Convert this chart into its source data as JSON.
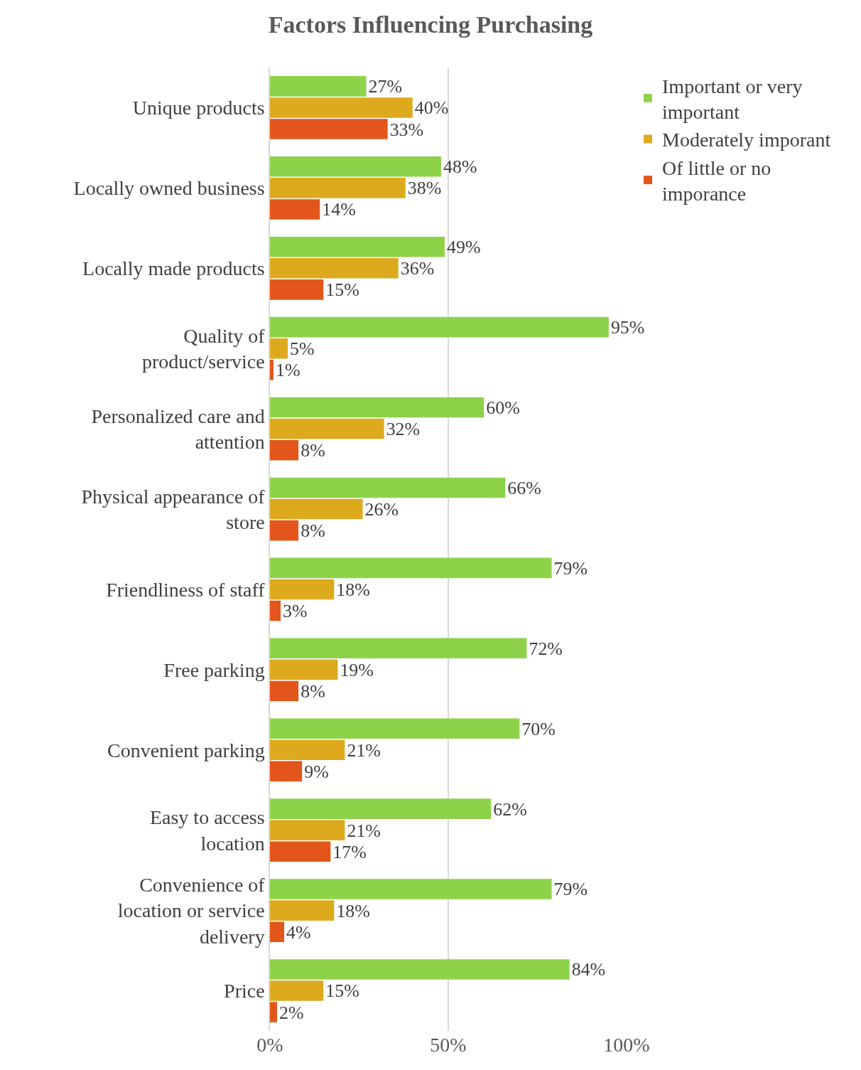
{
  "chart_data": {
    "type": "bar",
    "orientation": "horizontal",
    "title": "Factors Influencing Purchasing",
    "categories": [
      "Unique products",
      "Locally owned business",
      "Locally made products",
      "Quality of product/service",
      "Personalized care and attention",
      "Physical appearance of store",
      "Friendliness of staff",
      "Free parking",
      "Convenient parking",
      "Easy to access location",
      "Convenience of location or service delivery",
      "Price"
    ],
    "series": [
      {
        "name": "Important or very important",
        "color": "#8ed24a",
        "values": [
          27,
          48,
          49,
          95,
          60,
          66,
          79,
          72,
          70,
          62,
          79,
          84
        ],
        "value_labels": [
          "27%",
          "48%",
          "49%",
          "95%",
          "60%",
          "66%",
          "79%",
          "72%",
          "70%",
          "62%",
          "79%",
          "84%"
        ]
      },
      {
        "name": "Moderately imporant",
        "color": "#ddaa1e",
        "values": [
          40,
          38,
          36,
          5,
          32,
          26,
          18,
          19,
          21,
          21,
          18,
          15
        ],
        "value_labels": [
          "40%",
          "38%",
          "36%",
          "5%",
          "32%",
          "26%",
          "18%",
          "19%",
          "21%",
          "21%",
          "18%",
          "15%"
        ]
      },
      {
        "name": "Of little or no imporance",
        "color": "#e2561c",
        "values": [
          33,
          14,
          15,
          1,
          8,
          8,
          3,
          8,
          9,
          17,
          4,
          2
        ],
        "value_labels": [
          "33%",
          "14%",
          "15%",
          "1%",
          "8%",
          "8%",
          "3%",
          "8%",
          "9%",
          "17%",
          "4%",
          "2%"
        ]
      }
    ],
    "xlim": [
      0,
      100
    ],
    "xticks": [
      {
        "value": 0,
        "label": "0%"
      },
      {
        "value": 50,
        "label": "50%"
      },
      {
        "value": 100,
        "label": "100%"
      }
    ],
    "grid": "x",
    "legend": "right"
  }
}
